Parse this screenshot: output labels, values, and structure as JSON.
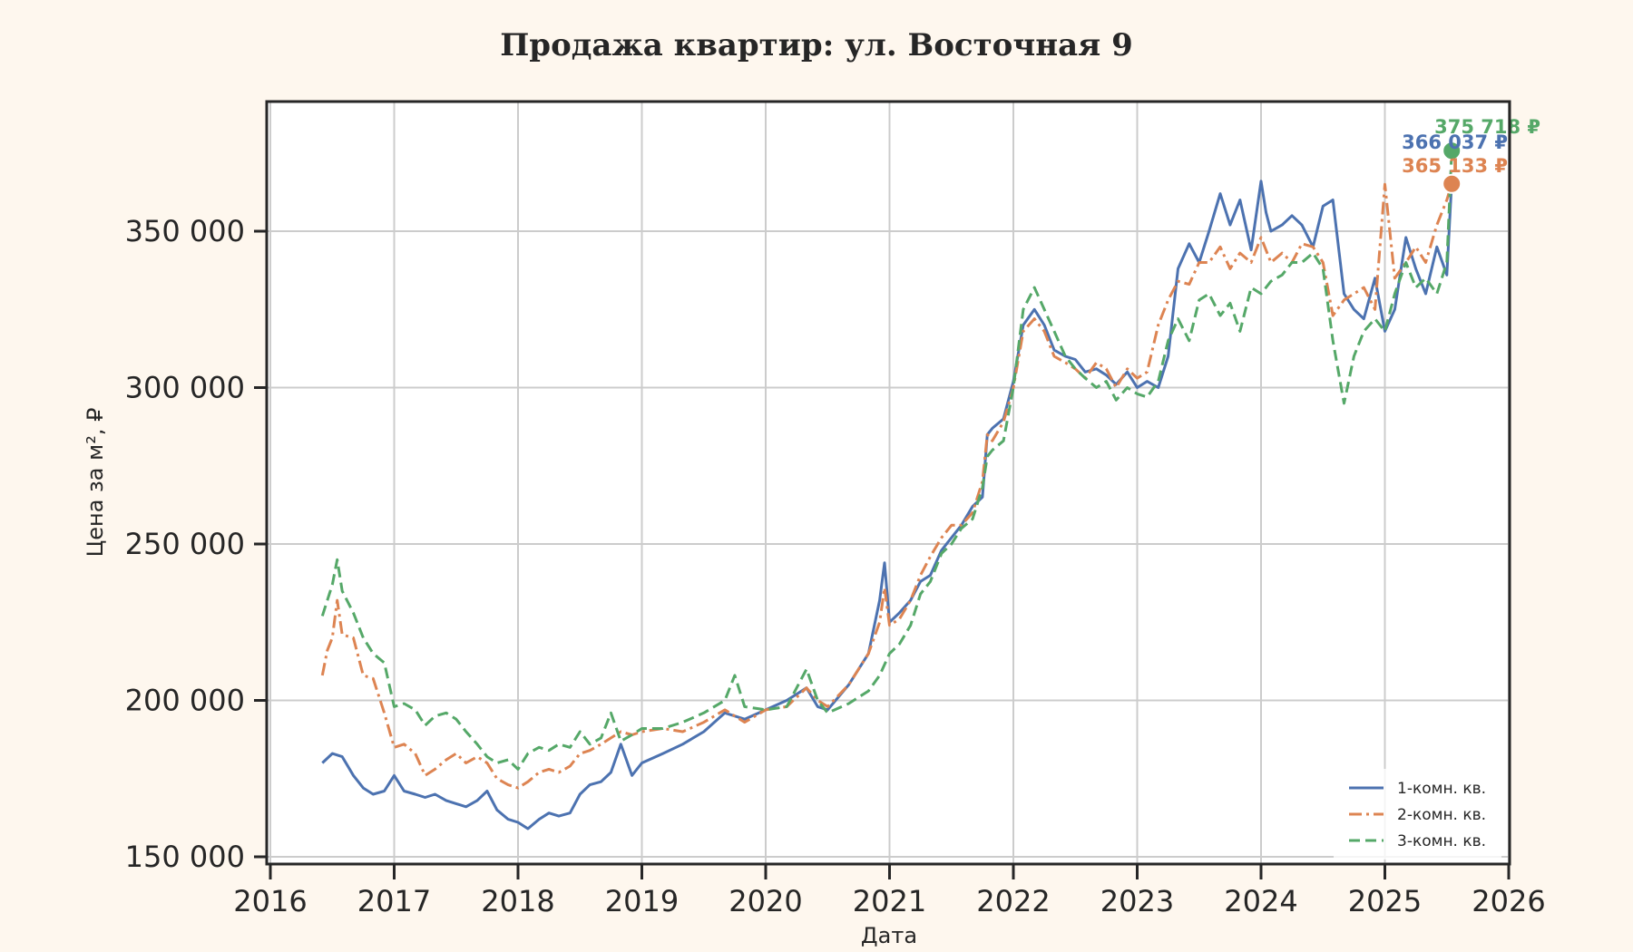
{
  "title": "Продажа квартир: ул. Восточная 9",
  "chart_data": {
    "type": "line",
    "title": "Продажа квартир: ул. Восточная 9",
    "xlabel": "Дата",
    "ylabel": "Цена за м², ₽",
    "xlim": [
      2016,
      2026
    ],
    "ylim": [
      147000,
      390000
    ],
    "x_ticks": [
      "2016",
      "2017",
      "2018",
      "2019",
      "2020",
      "2021",
      "2022",
      "2023",
      "2024",
      "2025",
      "2026"
    ],
    "y_ticks": [
      {
        "value": 150000,
        "label": "150 000"
      },
      {
        "value": 200000,
        "label": "200 000"
      },
      {
        "value": 250000,
        "label": "250 000"
      },
      {
        "value": 300000,
        "label": "300 000"
      },
      {
        "value": 350000,
        "label": "350 000"
      }
    ],
    "grid": true,
    "legend_position": "lower right",
    "series": [
      {
        "name": "1-комн. кв.",
        "color": "#4c72b0",
        "dash": "",
        "x": [
          2016.42,
          2016.5,
          2016.58,
          2016.67,
          2016.75,
          2016.83,
          2016.92,
          2017.0,
          2017.08,
          2017.17,
          2017.25,
          2017.33,
          2017.42,
          2017.5,
          2017.58,
          2017.67,
          2017.75,
          2017.83,
          2017.92,
          2018.0,
          2018.08,
          2018.17,
          2018.25,
          2018.33,
          2018.42,
          2018.5,
          2018.58,
          2018.67,
          2018.75,
          2018.83,
          2018.92,
          2019.0,
          2019.17,
          2019.33,
          2019.5,
          2019.67,
          2019.83,
          2020.0,
          2020.17,
          2020.33,
          2020.42,
          2020.5,
          2020.67,
          2020.83,
          2020.92,
          2020.96,
          2021.0,
          2021.08,
          2021.17,
          2021.25,
          2021.33,
          2021.42,
          2021.5,
          2021.58,
          2021.67,
          2021.75,
          2021.79,
          2021.83,
          2021.92,
          2022.0,
          2022.08,
          2022.17,
          2022.25,
          2022.33,
          2022.42,
          2022.5,
          2022.58,
          2022.67,
          2022.75,
          2022.83,
          2022.92,
          2023.0,
          2023.08,
          2023.17,
          2023.25,
          2023.33,
          2023.42,
          2023.5,
          2023.58,
          2023.67,
          2023.75,
          2023.83,
          2023.92,
          2024.0,
          2024.04,
          2024.08,
          2024.17,
          2024.25,
          2024.33,
          2024.42,
          2024.5,
          2024.58,
          2024.67,
          2024.75,
          2024.83,
          2024.92,
          2025.0,
          2025.08,
          2025.17,
          2025.25,
          2025.33,
          2025.42,
          2025.5,
          2025.54
        ],
        "values": [
          180000,
          183000,
          182000,
          176000,
          172000,
          170000,
          171000,
          176000,
          171000,
          170000,
          169000,
          170000,
          168000,
          167000,
          166000,
          168000,
          171000,
          165000,
          162000,
          161000,
          159000,
          162000,
          164000,
          163000,
          164000,
          170000,
          173000,
          174000,
          177000,
          186000,
          176000,
          180000,
          183000,
          186000,
          190000,
          196000,
          194000,
          197000,
          200000,
          204000,
          198000,
          197000,
          205000,
          215000,
          232000,
          244000,
          225000,
          228000,
          232000,
          238000,
          240000,
          248000,
          252000,
          256000,
          262000,
          265000,
          285000,
          287000,
          290000,
          302000,
          320000,
          325000,
          320000,
          312000,
          310000,
          309000,
          305000,
          306000,
          304000,
          301000,
          305000,
          300000,
          302000,
          300000,
          310000,
          338000,
          346000,
          340000,
          350000,
          362000,
          352000,
          360000,
          344000,
          366000,
          356000,
          350000,
          352000,
          355000,
          352000,
          345000,
          358000,
          360000,
          330000,
          325000,
          322000,
          335000,
          318000,
          325000,
          348000,
          338000,
          330000,
          345000,
          336000,
          366037
        ]
      },
      {
        "name": "2-комн. кв.",
        "color": "#dd8452",
        "dash": "14,5,3,5",
        "x": [
          2016.42,
          2016.46,
          2016.5,
          2016.54,
          2016.58,
          2016.67,
          2016.75,
          2016.83,
          2016.92,
          2017.0,
          2017.08,
          2017.17,
          2017.25,
          2017.33,
          2017.42,
          2017.5,
          2017.58,
          2017.67,
          2017.75,
          2017.83,
          2017.92,
          2018.0,
          2018.08,
          2018.17,
          2018.25,
          2018.33,
          2018.42,
          2018.5,
          2018.58,
          2018.67,
          2018.75,
          2018.83,
          2018.92,
          2019.0,
          2019.17,
          2019.33,
          2019.5,
          2019.67,
          2019.83,
          2020.0,
          2020.17,
          2020.33,
          2020.42,
          2020.5,
          2020.67,
          2020.83,
          2020.92,
          2020.96,
          2021.0,
          2021.08,
          2021.17,
          2021.25,
          2021.33,
          2021.42,
          2021.5,
          2021.58,
          2021.67,
          2021.75,
          2021.79,
          2021.83,
          2021.92,
          2022.0,
          2022.08,
          2022.17,
          2022.25,
          2022.33,
          2022.42,
          2022.5,
          2022.58,
          2022.67,
          2022.75,
          2022.83,
          2022.92,
          2023.0,
          2023.08,
          2023.17,
          2023.25,
          2023.33,
          2023.42,
          2023.5,
          2023.58,
          2023.67,
          2023.75,
          2023.83,
          2023.92,
          2024.0,
          2024.08,
          2024.17,
          2024.25,
          2024.33,
          2024.42,
          2024.5,
          2024.58,
          2024.67,
          2024.75,
          2024.83,
          2024.92,
          2025.0,
          2025.08,
          2025.17,
          2025.25,
          2025.33,
          2025.42,
          2025.5,
          2025.54
        ],
        "values": [
          208000,
          216000,
          220000,
          232000,
          221000,
          220000,
          208000,
          207000,
          196000,
          185000,
          186000,
          183000,
          176000,
          178000,
          181000,
          183000,
          180000,
          182000,
          180000,
          175000,
          173000,
          172000,
          174000,
          177000,
          178000,
          177000,
          179000,
          183000,
          184000,
          186000,
          188000,
          190000,
          189000,
          190000,
          191000,
          190000,
          193000,
          197000,
          193000,
          197000,
          198000,
          204000,
          200000,
          198000,
          205000,
          215000,
          225000,
          236000,
          224000,
          226000,
          232000,
          240000,
          246000,
          252000,
          256000,
          256000,
          260000,
          270000,
          285000,
          283000,
          289000,
          300000,
          318000,
          322000,
          318000,
          310000,
          308000,
          306000,
          303000,
          308000,
          306000,
          300000,
          306000,
          303000,
          305000,
          320000,
          328000,
          334000,
          333000,
          340000,
          340000,
          345000,
          338000,
          343000,
          340000,
          348000,
          340000,
          343000,
          340000,
          346000,
          345000,
          340000,
          323000,
          328000,
          330000,
          332000,
          325000,
          365000,
          335000,
          340000,
          345000,
          340000,
          352000,
          360000,
          365133
        ]
      },
      {
        "name": "3-комн. кв.",
        "color": "#55a868",
        "dash": "12,6",
        "x": [
          2016.42,
          2016.5,
          2016.54,
          2016.58,
          2016.67,
          2016.75,
          2016.83,
          2016.92,
          2017.0,
          2017.08,
          2017.17,
          2017.25,
          2017.33,
          2017.42,
          2017.5,
          2017.58,
          2017.67,
          2017.75,
          2017.83,
          2017.92,
          2018.0,
          2018.08,
          2018.17,
          2018.25,
          2018.33,
          2018.42,
          2018.5,
          2018.58,
          2018.67,
          2018.75,
          2018.83,
          2018.92,
          2019.0,
          2019.17,
          2019.33,
          2019.5,
          2019.67,
          2019.75,
          2019.83,
          2020.0,
          2020.17,
          2020.33,
          2020.42,
          2020.5,
          2020.67,
          2020.83,
          2020.92,
          2021.0,
          2021.08,
          2021.17,
          2021.25,
          2021.33,
          2021.42,
          2021.5,
          2021.58,
          2021.67,
          2021.75,
          2021.79,
          2021.83,
          2021.92,
          2022.0,
          2022.08,
          2022.17,
          2022.25,
          2022.33,
          2022.42,
          2022.5,
          2022.58,
          2022.67,
          2022.75,
          2022.83,
          2022.92,
          2023.0,
          2023.08,
          2023.17,
          2023.25,
          2023.33,
          2023.42,
          2023.5,
          2023.58,
          2023.67,
          2023.75,
          2023.83,
          2023.92,
          2024.0,
          2024.08,
          2024.17,
          2024.25,
          2024.33,
          2024.42,
          2024.5,
          2024.58,
          2024.67,
          2024.75,
          2024.83,
          2024.92,
          2025.0,
          2025.08,
          2025.17,
          2025.25,
          2025.33,
          2025.42,
          2025.5,
          2025.54
        ],
        "values": [
          227000,
          237000,
          245000,
          235000,
          228000,
          220000,
          215000,
          212000,
          198000,
          199000,
          197000,
          192000,
          195000,
          196000,
          194000,
          190000,
          186000,
          182000,
          180000,
          181000,
          178000,
          183000,
          185000,
          184000,
          186000,
          185000,
          190000,
          186000,
          188000,
          196000,
          187000,
          189000,
          191000,
          191000,
          193000,
          196000,
          200000,
          208000,
          198000,
          197000,
          198000,
          210000,
          200000,
          196000,
          199000,
          203000,
          208000,
          215000,
          218000,
          224000,
          234000,
          238000,
          247000,
          250000,
          255000,
          258000,
          268000,
          278000,
          280000,
          283000,
          300000,
          325000,
          332000,
          325000,
          318000,
          310000,
          306000,
          303000,
          300000,
          302000,
          296000,
          300000,
          298000,
          297000,
          302000,
          315000,
          322000,
          315000,
          328000,
          330000,
          323000,
          327000,
          318000,
          332000,
          330000,
          334000,
          336000,
          340000,
          340000,
          343000,
          338000,
          315000,
          295000,
          310000,
          318000,
          322000,
          318000,
          330000,
          340000,
          332000,
          335000,
          330000,
          340000,
          375718
        ]
      }
    ],
    "annotations": [
      {
        "series": "3-комн. кв.",
        "text": "375 718 ₽",
        "value": 375718,
        "color": "#55a868"
      },
      {
        "series": "1-комн. кв.",
        "text": "366 037 ₽",
        "value": 366037,
        "color": "#4c72b0"
      },
      {
        "series": "2-комн. кв.",
        "text": "365 133 ₽",
        "value": 365133,
        "color": "#dd8452"
      }
    ]
  }
}
